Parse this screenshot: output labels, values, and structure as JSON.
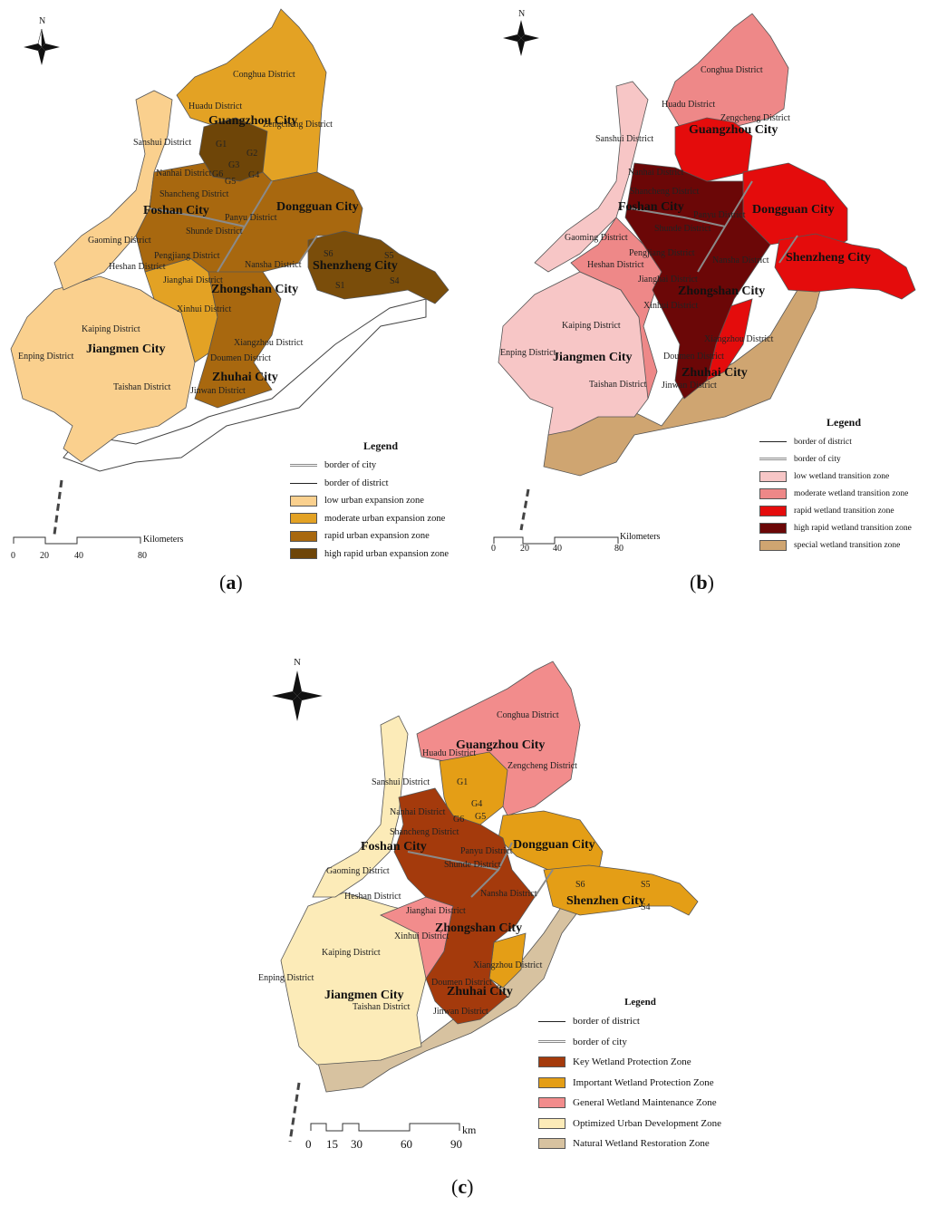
{
  "north_label": "N",
  "panel_a": {
    "caption_letter": "a",
    "cities": [
      "Guangzhou City",
      "Foshan City",
      "Dongguan City",
      "Shenzheng City",
      "Zhongshan City",
      "Jiangmen City",
      "Zhuhai City"
    ],
    "districts": [
      "Conghua District",
      "Huadu District",
      "Zengcheng District",
      "Sanshui District",
      "Nanhai District",
      "Shancheng District",
      "Panyu District",
      "Shunde District",
      "Gaoming District",
      "Pengjiang District",
      "Heshan District",
      "Jianghai District",
      "Nansha District",
      "Xinhui District",
      "Kaiping District",
      "Enping District",
      "Taishan District",
      "Xiangzhou District",
      "Doumen District",
      "Jinwan District"
    ],
    "codes": [
      "G1",
      "G2",
      "G3",
      "G4",
      "G5",
      "G6",
      "S6",
      "S5",
      "S1",
      "S4"
    ],
    "legend": {
      "title": "Legend",
      "lines": [
        "border of city",
        "border of district"
      ],
      "items": [
        {
          "label": "low urban expansion zone",
          "color": "#FAD08E"
        },
        {
          "label": "moderate urban expansion zone",
          "color": "#E3A224"
        },
        {
          "label": "rapid urban expansion zone",
          "color": "#A8680F"
        },
        {
          "label": "high rapid urban expansion zone",
          "color": "#6E4508"
        }
      ]
    },
    "scale": {
      "unit": "Kilometers",
      "ticks": [
        "0",
        "20",
        "40",
        "80"
      ]
    }
  },
  "panel_b": {
    "caption_letter": "b",
    "cities": [
      "Guangzhou City",
      "Foshan City",
      "Dongguan City",
      "Shenzheng City",
      "Zhongshan City",
      "Jiangmen City",
      "Zhuhai City"
    ],
    "districts": [
      "Conghua District",
      "Huadu District",
      "Zengcheng District",
      "Sanshui District",
      "Nanhai District",
      "Shancheng District",
      "Panyu District",
      "Shunde District",
      "Gaoming District",
      "Pengjiang District",
      "Heshan District",
      "Jianghai District",
      "Nansha District",
      "Xinhui District",
      "Kaiping District",
      "Enping District",
      "Taishan District",
      "Xiangzhou District",
      "Doumen District",
      "Jinwan District"
    ],
    "legend": {
      "title": "Legend",
      "lines": [
        "border of district",
        "border of city"
      ],
      "items": [
        {
          "label": "low wetland transition zone",
          "color": "#F7C6C6"
        },
        {
          "label": "moderate wetland transition zone",
          "color": "#EE8888"
        },
        {
          "label": "rapid wetland transition zone",
          "color": "#E40C0C"
        },
        {
          "label": "high rapid wetland transition zone",
          "color": "#6B0707"
        },
        {
          "label": "special wetland transition zone",
          "color": "#CFA571"
        }
      ]
    },
    "scale": {
      "unit": "Kilometers",
      "ticks": [
        "0",
        "20",
        "40",
        "80"
      ]
    }
  },
  "panel_c": {
    "caption_letter": "c",
    "cities": [
      "Guangzhou City",
      "Foshan City",
      "Dongguan City",
      "Shenzhen City",
      "Zhongshan City",
      "Jiangmen City",
      "Zhuhai City"
    ],
    "districts": [
      "Conghua District",
      "Huadu District",
      "Zengcheng District",
      "Sanshui District",
      "Nanhai District",
      "Shancheng District",
      "Panyu District",
      "Shunde District",
      "Gaoming District",
      "Heshan District",
      "Jianghai District",
      "Nansha District",
      "Xinhui District",
      "Kaiping District",
      "Enping District",
      "Taishan District",
      "Xiangzhou District",
      "Doumen District",
      "Jinwan District"
    ],
    "codes": [
      "G1",
      "G4",
      "G5",
      "G6",
      "S6",
      "S5",
      "S4"
    ],
    "legend": {
      "title": "Legend",
      "lines": [
        "border of district",
        "border of city"
      ],
      "items": [
        {
          "label": "Key Wetland Protection Zone",
          "color": "#A43A0C"
        },
        {
          "label": "Important Wetland Protection Zone",
          "color": "#E49E16"
        },
        {
          "label": "General Wetland Maintenance Zone",
          "color": "#F28C8C"
        },
        {
          "label": "Optimized Urban Development Zone",
          "color": "#FCEBB8"
        },
        {
          "label": "Natural Wetland Restoration Zone",
          "color": "#D7C2A0"
        }
      ]
    },
    "scale": {
      "unit": "km",
      "ticks": [
        "0",
        "15",
        "30",
        "60",
        "90"
      ]
    }
  }
}
